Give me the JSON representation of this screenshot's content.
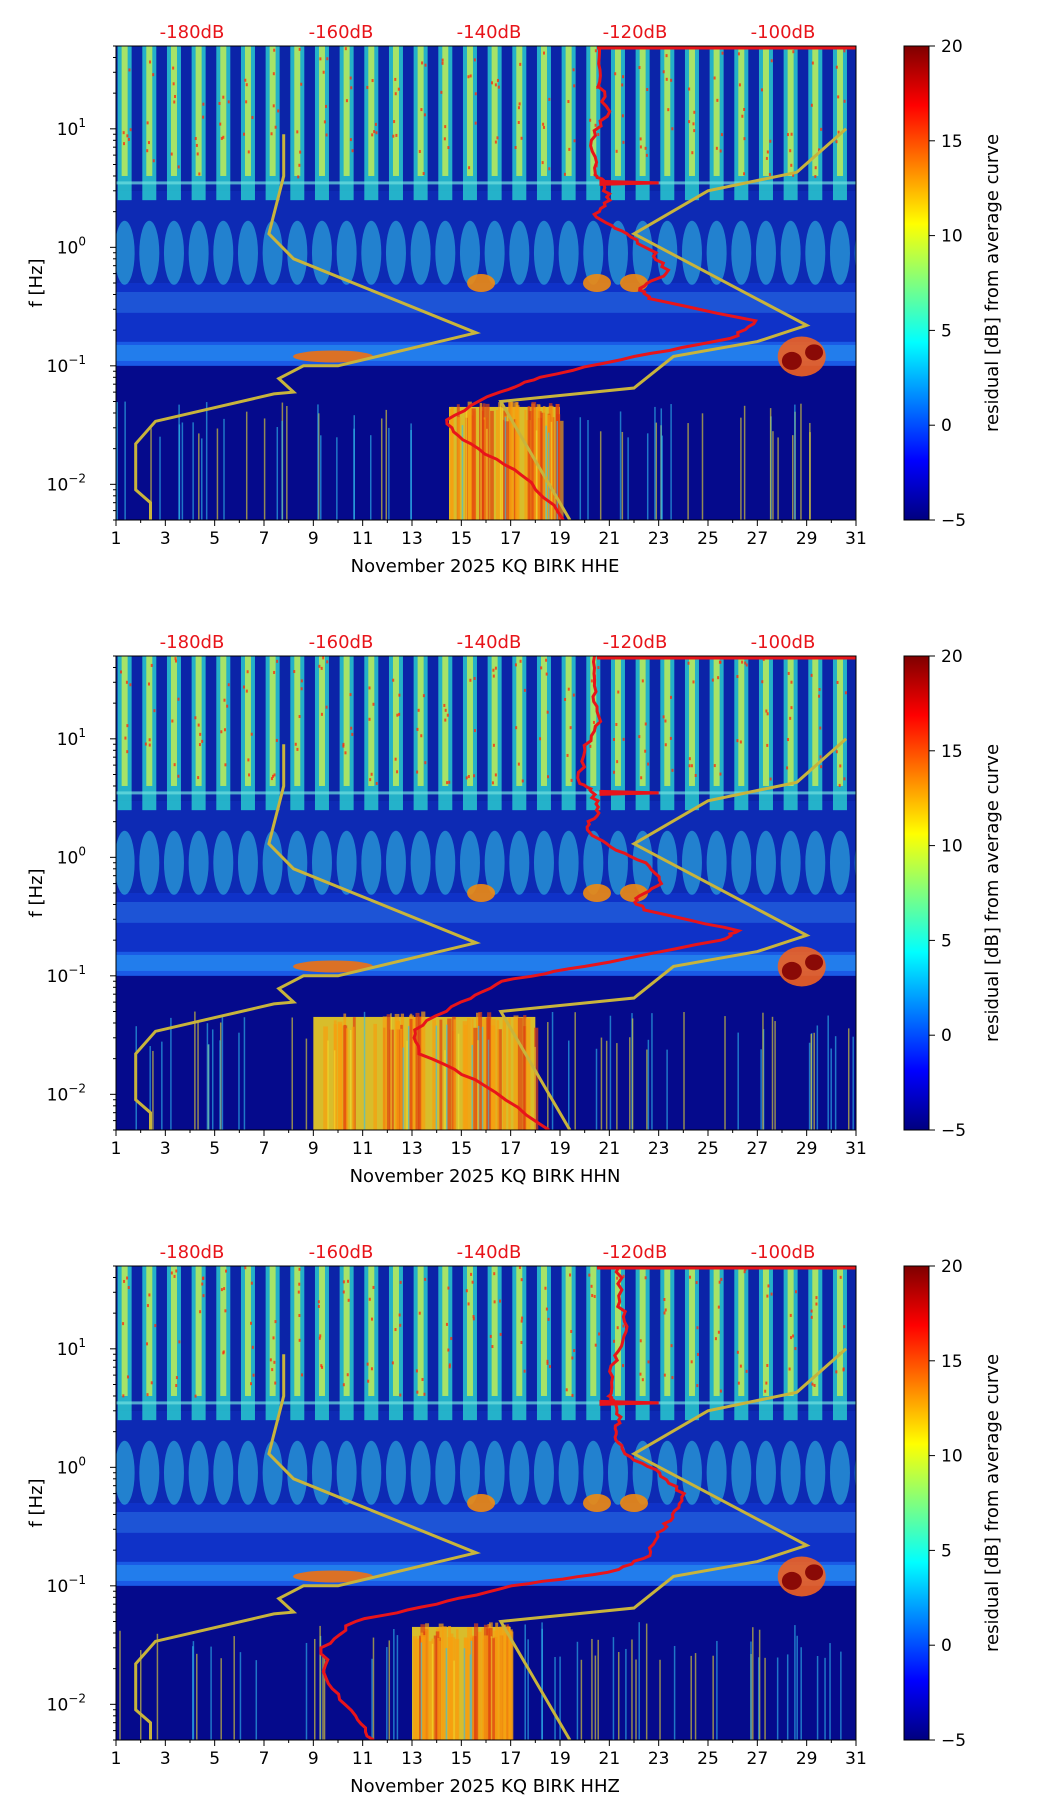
{
  "colors": {
    "db_label": "#e8141a",
    "nlnm_curve": "#c8b43c",
    "trace": "#e8141a",
    "jet": [
      "#00007f",
      "#0000ff",
      "#007fff",
      "#00ffff",
      "#7fff7f",
      "#ffff00",
      "#ff7f00",
      "#ff0000",
      "#7f0000"
    ]
  },
  "db_scale": [
    "-180dB",
    "-160dB",
    "-140dB",
    "-120dB",
    "-100dB"
  ],
  "day_ticks": [
    "1",
    "3",
    "5",
    "7",
    "9",
    "11",
    "13",
    "15",
    "17",
    "19",
    "21",
    "23",
    "25",
    "27",
    "29",
    "31"
  ],
  "freq_ticks": [
    {
      "base": "10",
      "exp": "1"
    },
    {
      "base": "10",
      "exp": "0"
    },
    {
      "base": "10",
      "exp": "−1"
    },
    {
      "base": "10",
      "exp": "−2"
    }
  ],
  "ylabel": "f [Hz]",
  "colorbar": {
    "label": "residual [dB] from average curve",
    "ticks": [
      "20",
      "15",
      "10",
      "5",
      "0",
      "−5"
    ]
  },
  "chart_data": [
    {
      "type": "heatmap",
      "title": "",
      "xlabel": "November 2025 KQ BIRK  HHE",
      "ylabel": "f [Hz]",
      "x_range_days": [
        1,
        31
      ],
      "y_range_hz": [
        0.005,
        50
      ],
      "color_range_db": [
        -5,
        20
      ],
      "bright_low_freq_days": [
        14.5,
        19
      ],
      "noise_model_curve": [
        [
          2.4,
          0.005
        ],
        [
          2.4,
          0.007
        ],
        [
          1.8,
          0.009
        ],
        [
          1.8,
          0.022
        ],
        [
          2.6,
          0.034
        ],
        [
          7.4,
          0.058
        ],
        [
          8.2,
          0.06
        ],
        [
          7.6,
          0.078
        ],
        [
          8.6,
          0.1
        ],
        [
          10,
          0.1
        ],
        [
          15.6,
          0.19
        ],
        [
          8.2,
          0.8
        ],
        [
          7.2,
          1.3
        ],
        [
          7.8,
          4
        ],
        [
          7.8,
          9
        ]
      ],
      "noise_model_curve_right": [
        [
          19.4,
          0.005
        ],
        [
          16.6,
          0.05
        ],
        [
          22.0,
          0.065
        ],
        [
          23.6,
          0.12
        ],
        [
          27.0,
          0.16
        ],
        [
          29.0,
          0.22
        ],
        [
          22.0,
          1.3
        ],
        [
          25.0,
          3.0
        ],
        [
          28.6,
          4.3
        ],
        [
          30.6,
          10
        ]
      ],
      "db_trace": [
        [
          19.2,
          0.005
        ],
        [
          17.5,
          0.012
        ],
        [
          15.3,
          0.022
        ],
        [
          14.3,
          0.035
        ],
        [
          16.5,
          0.06
        ],
        [
          18.2,
          0.08
        ],
        [
          22,
          0.12
        ],
        [
          26.0,
          0.17
        ],
        [
          26.9,
          0.24
        ],
        [
          22.7,
          0.37
        ],
        [
          22.2,
          0.45
        ],
        [
          23.4,
          0.6
        ],
        [
          22.8,
          0.9
        ],
        [
          21.6,
          1.3
        ],
        [
          20.4,
          1.8
        ],
        [
          21.0,
          2.5
        ],
        [
          20.7,
          3.6
        ],
        [
          20.4,
          4.2
        ],
        [
          20.3,
          8
        ],
        [
          20.9,
          14
        ],
        [
          20.6,
          25
        ],
        [
          20.6,
          50
        ]
      ]
    },
    {
      "type": "heatmap",
      "title": "",
      "xlabel": "November 2025 KQ BIRK  HHN",
      "ylabel": "f [Hz]",
      "x_range_days": [
        1,
        31
      ],
      "y_range_hz": [
        0.005,
        50
      ],
      "color_range_db": [
        -5,
        20
      ],
      "bright_low_freq_days": [
        9,
        18
      ],
      "noise_model_curve": [
        [
          2.4,
          0.005
        ],
        [
          2.4,
          0.007
        ],
        [
          1.8,
          0.009
        ],
        [
          1.8,
          0.022
        ],
        [
          2.6,
          0.034
        ],
        [
          7.4,
          0.058
        ],
        [
          8.2,
          0.06
        ],
        [
          7.6,
          0.078
        ],
        [
          8.6,
          0.1
        ],
        [
          10,
          0.1
        ],
        [
          15.6,
          0.19
        ],
        [
          8.2,
          0.8
        ],
        [
          7.2,
          1.3
        ],
        [
          7.8,
          4
        ],
        [
          7.8,
          9
        ]
      ],
      "noise_model_curve_right": [
        [
          19.4,
          0.005
        ],
        [
          16.6,
          0.05
        ],
        [
          22.0,
          0.065
        ],
        [
          23.6,
          0.12
        ],
        [
          27.0,
          0.16
        ],
        [
          29.0,
          0.22
        ],
        [
          22.0,
          1.3
        ],
        [
          25.0,
          3.0
        ],
        [
          28.6,
          4.3
        ],
        [
          30.6,
          10
        ]
      ],
      "db_trace": [
        [
          18.6,
          0.005
        ],
        [
          16.0,
          0.012
        ],
        [
          13.4,
          0.022
        ],
        [
          13.0,
          0.035
        ],
        [
          15.0,
          0.06
        ],
        [
          16.6,
          0.09
        ],
        [
          20,
          0.12
        ],
        [
          25.5,
          0.2
        ],
        [
          26.2,
          0.24
        ],
        [
          22.4,
          0.36
        ],
        [
          22.0,
          0.45
        ],
        [
          23.2,
          0.6
        ],
        [
          22.4,
          0.9
        ],
        [
          20.8,
          1.3
        ],
        [
          20.0,
          1.8
        ],
        [
          20.6,
          2.5
        ],
        [
          20.3,
          3.6
        ],
        [
          19.8,
          4.2
        ],
        [
          20.0,
          8
        ],
        [
          20.6,
          14
        ],
        [
          20.4,
          25
        ],
        [
          20.4,
          50
        ]
      ]
    },
    {
      "type": "heatmap",
      "title": "",
      "xlabel": "November 2025 KQ BIRK  HHZ",
      "ylabel": "f [Hz]",
      "x_range_days": [
        1,
        31
      ],
      "y_range_hz": [
        0.005,
        50
      ],
      "color_range_db": [
        -5,
        20
      ],
      "bright_low_freq_days": [
        13,
        17
      ],
      "noise_model_curve": [
        [
          2.4,
          0.005
        ],
        [
          2.4,
          0.007
        ],
        [
          1.8,
          0.009
        ],
        [
          1.8,
          0.022
        ],
        [
          2.6,
          0.034
        ],
        [
          7.4,
          0.058
        ],
        [
          8.2,
          0.06
        ],
        [
          7.6,
          0.078
        ],
        [
          8.6,
          0.1
        ],
        [
          10,
          0.1
        ],
        [
          15.6,
          0.19
        ],
        [
          8.2,
          0.8
        ],
        [
          7.2,
          1.3
        ],
        [
          7.8,
          4
        ],
        [
          7.8,
          9
        ]
      ],
      "noise_model_curve_right": [
        [
          19.4,
          0.005
        ],
        [
          16.6,
          0.05
        ],
        [
          22.0,
          0.065
        ],
        [
          23.6,
          0.12
        ],
        [
          27.0,
          0.16
        ],
        [
          29.0,
          0.22
        ],
        [
          22.0,
          1.3
        ],
        [
          25.0,
          3.0
        ],
        [
          28.6,
          4.3
        ],
        [
          30.6,
          10
        ]
      ],
      "db_trace": [
        [
          11.4,
          0.005
        ],
        [
          10.6,
          0.008
        ],
        [
          9.6,
          0.015
        ],
        [
          9.4,
          0.03
        ],
        [
          10.6,
          0.05
        ],
        [
          14.0,
          0.07
        ],
        [
          17.0,
          0.1
        ],
        [
          21,
          0.13
        ],
        [
          22.6,
          0.18
        ],
        [
          23.0,
          0.28
        ],
        [
          23.6,
          0.4
        ],
        [
          24.0,
          0.6
        ],
        [
          23.0,
          0.9
        ],
        [
          21.6,
          1.3
        ],
        [
          21.2,
          1.8
        ],
        [
          21.4,
          2.5
        ],
        [
          21.2,
          3.6
        ],
        [
          21.0,
          4.2
        ],
        [
          21.2,
          8
        ],
        [
          21.8,
          14
        ],
        [
          21.4,
          25
        ],
        [
          21.4,
          50
        ]
      ]
    }
  ]
}
